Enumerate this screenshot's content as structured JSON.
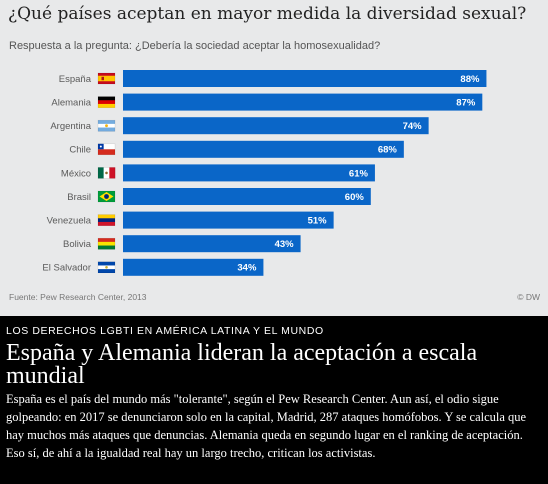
{
  "chart": {
    "title": "¿Qué países aceptan en mayor medida la diversidad sexual?",
    "subtitle": "Respuesta a la pregunta: ¿Debería la sociedad aceptar la homosexualidad?",
    "source": "Fuente: Pew Research Center, 2013",
    "credit": "© DW"
  },
  "chart_data": {
    "type": "bar",
    "orientation": "horizontal",
    "title": "¿Qué países aceptan en mayor medida la diversidad sexual?",
    "subtitle": "Respuesta a la pregunta: ¿Debería la sociedad aceptar la homosexualidad?",
    "categories": [
      "España",
      "Alemania",
      "Argentina",
      "Chile",
      "México",
      "Brasil",
      "Venezuela",
      "Bolivia",
      "El Salvador"
    ],
    "values": [
      88,
      87,
      74,
      68,
      61,
      60,
      51,
      43,
      34
    ],
    "value_labels": [
      "88%",
      "87%",
      "74%",
      "68%",
      "61%",
      "60%",
      "51%",
      "43%",
      "34%"
    ],
    "flags": [
      "spain-flag-icon",
      "germany-flag-icon",
      "argentina-flag-icon",
      "chile-flag-icon",
      "mexico-flag-icon",
      "brazil-flag-icon",
      "venezuela-flag-icon",
      "bolivia-flag-icon",
      "el-salvador-flag-icon"
    ],
    "xlim": [
      0,
      100
    ],
    "bar_color": "#0a66c8",
    "grid": false,
    "legend": "none",
    "source": "Fuente: Pew Research Center, 2013"
  },
  "article": {
    "kicker": "LOS DERECHOS LGBTI EN AMÉRICA LATINA Y EL MUNDO",
    "headline": "España y Alemania lideran la aceptación a escala mundial",
    "body": "España es el país del mundo más \"tolerante\", según el Pew Research Center. Aun así, el odio sigue golpeando: en 2017 se denunciaron solo en la capital, Madrid, 287 ataques homófobos. Y se calcula que hay muchos más ataques que denuncias. Alemania queda en segundo lugar en el ranking de aceptación. Eso sí, de ahí a la igualdad real hay un largo trecho, critican los activistas."
  }
}
